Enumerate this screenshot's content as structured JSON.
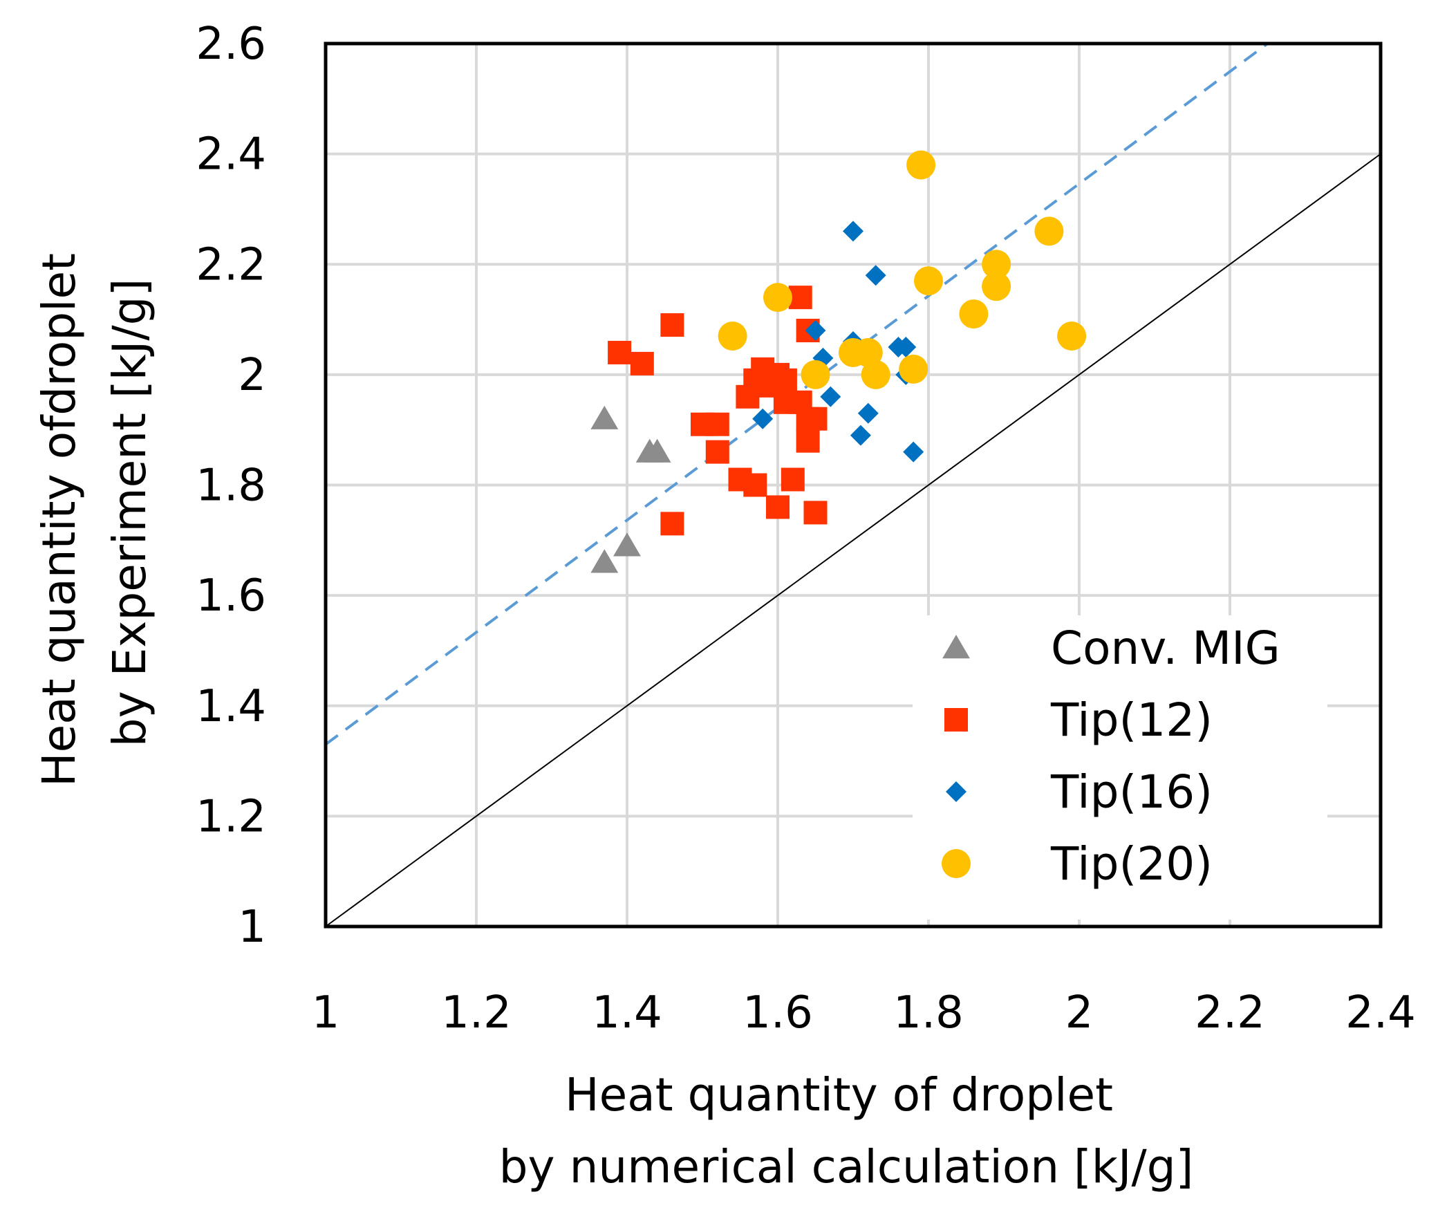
{
  "chart_data": {
    "type": "scatter",
    "xlabel_lines": [
      "Heat quantity of droplet",
      "by numerical calculation [kJ/g]"
    ],
    "ylabel_lines": [
      "Heat quantity ofdroplet",
      "by Experiment [kJ/g]"
    ],
    "xlim": [
      1,
      2.4
    ],
    "ylim": [
      1,
      2.6
    ],
    "x_ticks": [
      1,
      1.2,
      1.4,
      1.6,
      1.8,
      2,
      2.2,
      2.4
    ],
    "y_ticks": [
      1,
      1.2,
      1.4,
      1.6,
      1.8,
      2,
      2.2,
      2.4,
      2.6
    ],
    "x_tick_labels": [
      "1",
      "1.2",
      "1.4",
      "1.6",
      "1.8",
      "2",
      "2.2",
      "2.4"
    ],
    "y_tick_labels": [
      "1",
      "1.2",
      "1.4",
      "1.6",
      "1.8",
      "2",
      "2.2",
      "2.4",
      "2.6"
    ],
    "grid": true,
    "legend_position": "bottom-right",
    "reference_lines": [
      {
        "name": "y = x",
        "color": "#000000",
        "style": "solid",
        "x": [
          1,
          2.4
        ],
        "y": [
          1,
          2.4
        ]
      },
      {
        "name": "trend",
        "color": "#5B9BD5",
        "style": "dashed",
        "x": [
          1,
          2.25
        ],
        "y": [
          1.33,
          2.6
        ]
      }
    ],
    "series": [
      {
        "name": "Conv. MIG",
        "marker": "triangle",
        "color": "#8C8C8C",
        "points": [
          [
            1.37,
            1.92
          ],
          [
            1.43,
            1.86
          ],
          [
            1.44,
            1.86
          ],
          [
            1.37,
            1.66
          ],
          [
            1.4,
            1.69
          ]
        ]
      },
      {
        "name": "Tip(12)",
        "marker": "square",
        "color": "#FF3300",
        "points": [
          [
            1.39,
            2.04
          ],
          [
            1.42,
            2.02
          ],
          [
            1.46,
            2.09
          ],
          [
            1.46,
            1.73
          ],
          [
            1.5,
            1.91
          ],
          [
            1.52,
            1.91
          ],
          [
            1.52,
            1.86
          ],
          [
            1.55,
            1.81
          ],
          [
            1.57,
            1.8
          ],
          [
            1.56,
            1.96
          ],
          [
            1.57,
            1.99
          ],
          [
            1.58,
            2.01
          ],
          [
            1.59,
            1.98
          ],
          [
            1.6,
            2.0
          ],
          [
            1.61,
            1.95
          ],
          [
            1.61,
            1.99
          ],
          [
            1.6,
            1.76
          ],
          [
            1.62,
            1.81
          ],
          [
            1.63,
            1.95
          ],
          [
            1.63,
            2.14
          ],
          [
            1.64,
            2.08
          ],
          [
            1.64,
            1.88
          ],
          [
            1.64,
            1.92
          ],
          [
            1.65,
            1.92
          ],
          [
            1.65,
            1.75
          ]
        ]
      },
      {
        "name": "Tip(16)",
        "marker": "diamond",
        "color": "#0070C0",
        "points": [
          [
            1.58,
            1.92
          ],
          [
            1.65,
            2.08
          ],
          [
            1.66,
            2.03
          ],
          [
            1.67,
            1.96
          ],
          [
            1.7,
            2.06
          ],
          [
            1.7,
            2.26
          ],
          [
            1.71,
            1.89
          ],
          [
            1.72,
            1.93
          ],
          [
            1.73,
            2.18
          ],
          [
            1.76,
            2.05
          ],
          [
            1.77,
            2.05
          ],
          [
            1.77,
            2.0
          ],
          [
            1.78,
            1.86
          ]
        ]
      },
      {
        "name": "Tip(20)",
        "marker": "circle",
        "color": "#FFC000",
        "points": [
          [
            1.54,
            2.07
          ],
          [
            1.6,
            2.14
          ],
          [
            1.65,
            2.0
          ],
          [
            1.7,
            2.04
          ],
          [
            1.72,
            2.04
          ],
          [
            1.73,
            2.0
          ],
          [
            1.78,
            2.01
          ],
          [
            1.79,
            2.38
          ],
          [
            1.8,
            2.17
          ],
          [
            1.86,
            2.11
          ],
          [
            1.89,
            2.16
          ],
          [
            1.89,
            2.2
          ],
          [
            1.96,
            2.26
          ],
          [
            1.99,
            2.07
          ]
        ]
      }
    ]
  }
}
